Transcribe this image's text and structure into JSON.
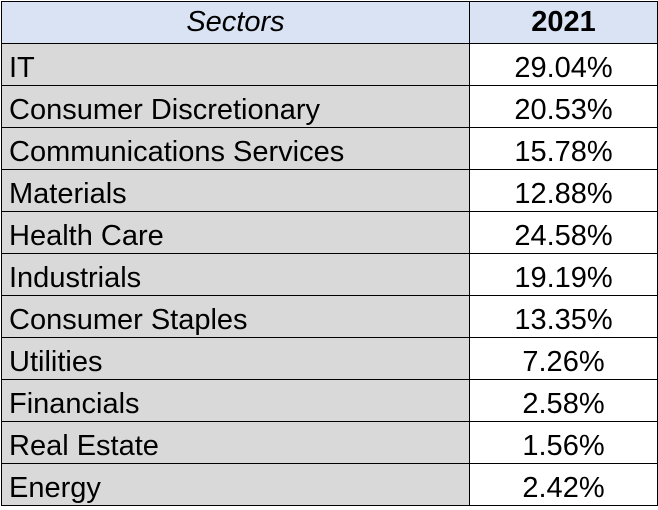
{
  "chart_data": {
    "type": "table",
    "columns": [
      "Sectors",
      "2021"
    ],
    "rows": [
      {
        "sector": "IT",
        "value": "29.04%"
      },
      {
        "sector": "Consumer Discretionary",
        "value": "20.53%"
      },
      {
        "sector": "Communications Services",
        "value": "15.78%"
      },
      {
        "sector": "Materials",
        "value": "12.88%"
      },
      {
        "sector": "Health Care",
        "value": "24.58%"
      },
      {
        "sector": "Industrials",
        "value": "19.19%"
      },
      {
        "sector": "Consumer Staples",
        "value": "13.35%"
      },
      {
        "sector": "Utilities",
        "value": "7.26%"
      },
      {
        "sector": "Financials",
        "value": "2.58%"
      },
      {
        "sector": "Real Estate",
        "value": "1.56%"
      },
      {
        "sector": "Energy",
        "value": "2.42%"
      }
    ],
    "colors": {
      "header_bg": "#dae3f3",
      "sector_cell_bg": "#d9d9d9",
      "value_cell_bg": "#ffffff",
      "border": "#000000"
    }
  }
}
